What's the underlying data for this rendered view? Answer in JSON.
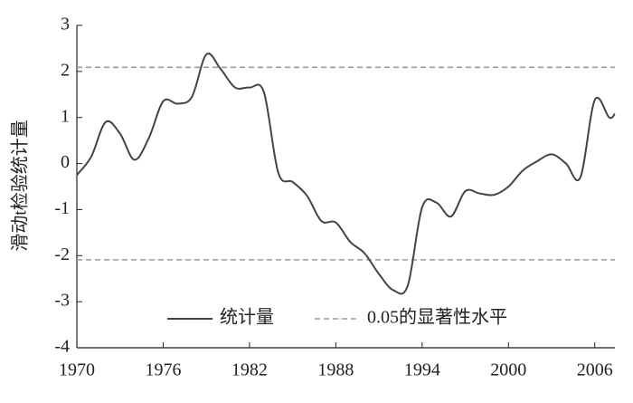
{
  "chart_data": {
    "type": "line",
    "y_label": "滑动t检验统计量",
    "x": [
      1970,
      1971,
      1972,
      1973,
      1974,
      1975,
      1976,
      1977,
      1978,
      1979,
      1980,
      1981,
      1982,
      1983,
      1984,
      1985,
      1986,
      1987,
      1988,
      1989,
      1990,
      1991,
      1992,
      1993,
      1994,
      1995,
      1996,
      1997,
      1998,
      1999,
      2000,
      2001,
      2002,
      2003,
      2004,
      2005,
      2006,
      2007,
      2007.4
    ],
    "series": [
      {
        "name": "统计量",
        "color": "#444444",
        "values": [
          -0.25,
          0.15,
          0.9,
          0.65,
          0.08,
          0.55,
          1.35,
          1.3,
          1.45,
          2.37,
          2.05,
          1.65,
          1.65,
          1.55,
          -0.2,
          -0.4,
          -0.7,
          -1.25,
          -1.28,
          -1.7,
          -1.95,
          -2.4,
          -2.75,
          -2.65,
          -0.95,
          -0.85,
          -1.15,
          -0.6,
          -0.65,
          -0.68,
          -0.5,
          -0.15,
          0.05,
          0.2,
          0.0,
          -0.3,
          1.38,
          1.0,
          1.08
        ]
      }
    ],
    "reference_lines": {
      "name": "0.05的显著性水平",
      "color": "#999999",
      "values": [
        2.09,
        -2.09
      ]
    },
    "xlim": [
      1970,
      2007.4
    ],
    "xticks": [
      1970,
      1976,
      1982,
      1988,
      1994,
      2000,
      2006
    ],
    "ylim": [
      -4,
      3
    ],
    "yticks": [
      -4,
      -3,
      -2,
      -1,
      0,
      1,
      2,
      3
    ],
    "grid": false
  }
}
